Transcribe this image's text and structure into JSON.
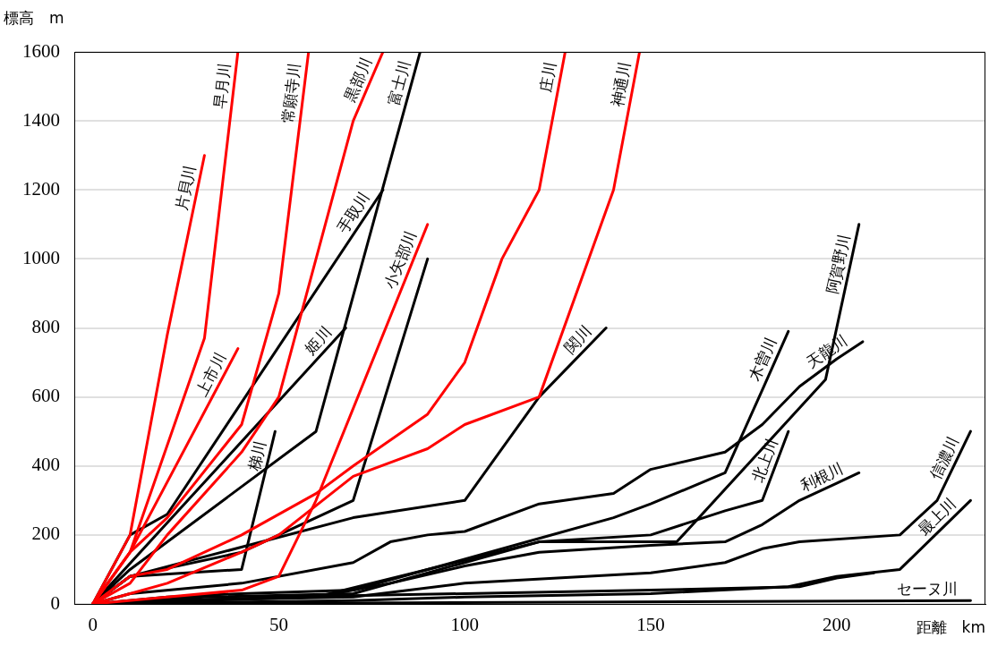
{
  "chart_data": {
    "type": "line",
    "xlabel": "距離　km",
    "ylabel": "標高　m",
    "xlim": [
      -5,
      240
    ],
    "xticks": [
      0,
      50,
      100,
      150,
      200
    ],
    "ylim": [
      0,
      1600
    ],
    "yticks": [
      0,
      200,
      400,
      600,
      800,
      1000,
      1200,
      1400,
      1600
    ],
    "grid": "y",
    "legend": false,
    "marker": "none",
    "line_style": "solid",
    "series": [
      {
        "name": "片貝川",
        "color": "#ff0000",
        "x": [
          0,
          10,
          20,
          30
        ],
        "values": [
          0,
          200,
          780,
          1300
        ]
      },
      {
        "name": "早月川",
        "color": "#ff0000",
        "x": [
          0,
          10,
          30,
          39
        ],
        "values": [
          0,
          150,
          770,
          1600
        ]
      },
      {
        "name": "常願寺川",
        "color": "#ff0000",
        "x": [
          0,
          10,
          20,
          40,
          50,
          58
        ],
        "values": [
          0,
          150,
          250,
          520,
          900,
          1600
        ]
      },
      {
        "name": "黒部川",
        "color": "#ff0000",
        "x": [
          0,
          10,
          20,
          40,
          50,
          70,
          78
        ],
        "values": [
          0,
          60,
          200,
          440,
          600,
          1400,
          1600
        ]
      },
      {
        "name": "上市川",
        "color": "#ff0000",
        "x": [
          0,
          10,
          39
        ],
        "values": [
          0,
          150,
          740
        ]
      },
      {
        "name": "小矢部川",
        "color": "#ff0000",
        "x": [
          0,
          20,
          40,
          50,
          60,
          90
        ],
        "values": [
          0,
          20,
          40,
          80,
          300,
          1100
        ]
      },
      {
        "name": "庄川",
        "color": "#ff0000",
        "x": [
          0,
          10,
          20,
          40,
          60,
          70,
          90,
          100,
          110,
          120,
          127
        ],
        "values": [
          0,
          80,
          100,
          200,
          320,
          400,
          550,
          700,
          1000,
          1200,
          1600
        ]
      },
      {
        "name": "神通川",
        "color": "#ff0000",
        "x": [
          0,
          10,
          20,
          40,
          50,
          70,
          90,
          100,
          120,
          140,
          147
        ],
        "values": [
          0,
          30,
          60,
          150,
          200,
          370,
          450,
          520,
          600,
          1200,
          1600
        ]
      },
      {
        "name": "富士川",
        "color": "#000000",
        "x": [
          0,
          10,
          60,
          88
        ],
        "values": [
          0,
          100,
          500,
          1600
        ]
      },
      {
        "name": "手取川",
        "color": "#000000",
        "x": [
          0,
          10,
          20,
          78
        ],
        "values": [
          0,
          200,
          260,
          1200
        ]
      },
      {
        "name": "姫川",
        "color": "#000000",
        "x": [
          0,
          68
        ],
        "values": [
          0,
          800
        ]
      },
      {
        "name": "梯川",
        "color": "#000000",
        "x": [
          0,
          10,
          40,
          49
        ],
        "values": [
          0,
          80,
          100,
          500
        ]
      },
      {
        "color": "#000000",
        "x": [
          0,
          10,
          40,
          70,
          90
        ],
        "values": [
          0,
          80,
          150,
          300,
          1000
        ]
      },
      {
        "name": "関川",
        "color": "#000000",
        "x": [
          0,
          10,
          70,
          100,
          120,
          138
        ],
        "values": [
          0,
          80,
          250,
          300,
          600,
          800
        ]
      },
      {
        "name": "天龍川",
        "color": "#000000",
        "x": [
          0,
          10,
          40,
          70,
          80,
          90,
          100,
          120,
          140,
          150,
          170,
          180,
          190,
          200,
          207
        ],
        "values": [
          0,
          30,
          60,
          120,
          180,
          200,
          210,
          290,
          320,
          390,
          440,
          520,
          630,
          710,
          760
        ]
      },
      {
        "name": "木曽川",
        "color": "#000000",
        "x": [
          0,
          20,
          40,
          70,
          90,
          120,
          140,
          150,
          170,
          180,
          187
        ],
        "values": [
          0,
          20,
          30,
          40,
          100,
          190,
          250,
          290,
          380,
          620,
          790
        ]
      },
      {
        "name": "阿賀野川",
        "color": "#000000",
        "x": [
          0,
          30,
          70,
          120,
          157,
          197,
          206
        ],
        "values": [
          0,
          20,
          30,
          180,
          180,
          650,
          1100
        ]
      },
      {
        "name": "北上川",
        "color": "#000000",
        "x": [
          0,
          60,
          90,
          120,
          150,
          170,
          180,
          187
        ],
        "values": [
          0,
          20,
          100,
          180,
          200,
          270,
          300,
          500
        ]
      },
      {
        "name": "利根川",
        "color": "#000000",
        "x": [
          0,
          20,
          60,
          80,
          100,
          120,
          150,
          170,
          180,
          190,
          200,
          206
        ],
        "values": [
          0,
          10,
          20,
          60,
          110,
          150,
          170,
          180,
          230,
          300,
          350,
          380
        ]
      },
      {
        "name": "信濃川",
        "color": "#000000",
        "x": [
          0,
          20,
          70,
          100,
          150,
          170,
          180,
          190,
          217,
          227,
          236
        ],
        "values": [
          0,
          10,
          20,
          60,
          90,
          120,
          160,
          180,
          200,
          300,
          500
        ]
      },
      {
        "name": "最上川",
        "color": "#000000",
        "x": [
          0,
          70,
          100,
          150,
          187,
          200,
          217,
          236
        ],
        "values": [
          0,
          10,
          20,
          30,
          50,
          80,
          100,
          300
        ]
      },
      {
        "color": "#000000",
        "x": [
          0,
          50,
          100,
          150,
          190,
          200,
          210
        ],
        "values": [
          0,
          20,
          30,
          40,
          50,
          75,
          90
        ]
      },
      {
        "name": "セーヌ川",
        "color": "#000000",
        "x": [
          0,
          236
        ],
        "values": [
          0,
          10
        ]
      }
    ]
  }
}
